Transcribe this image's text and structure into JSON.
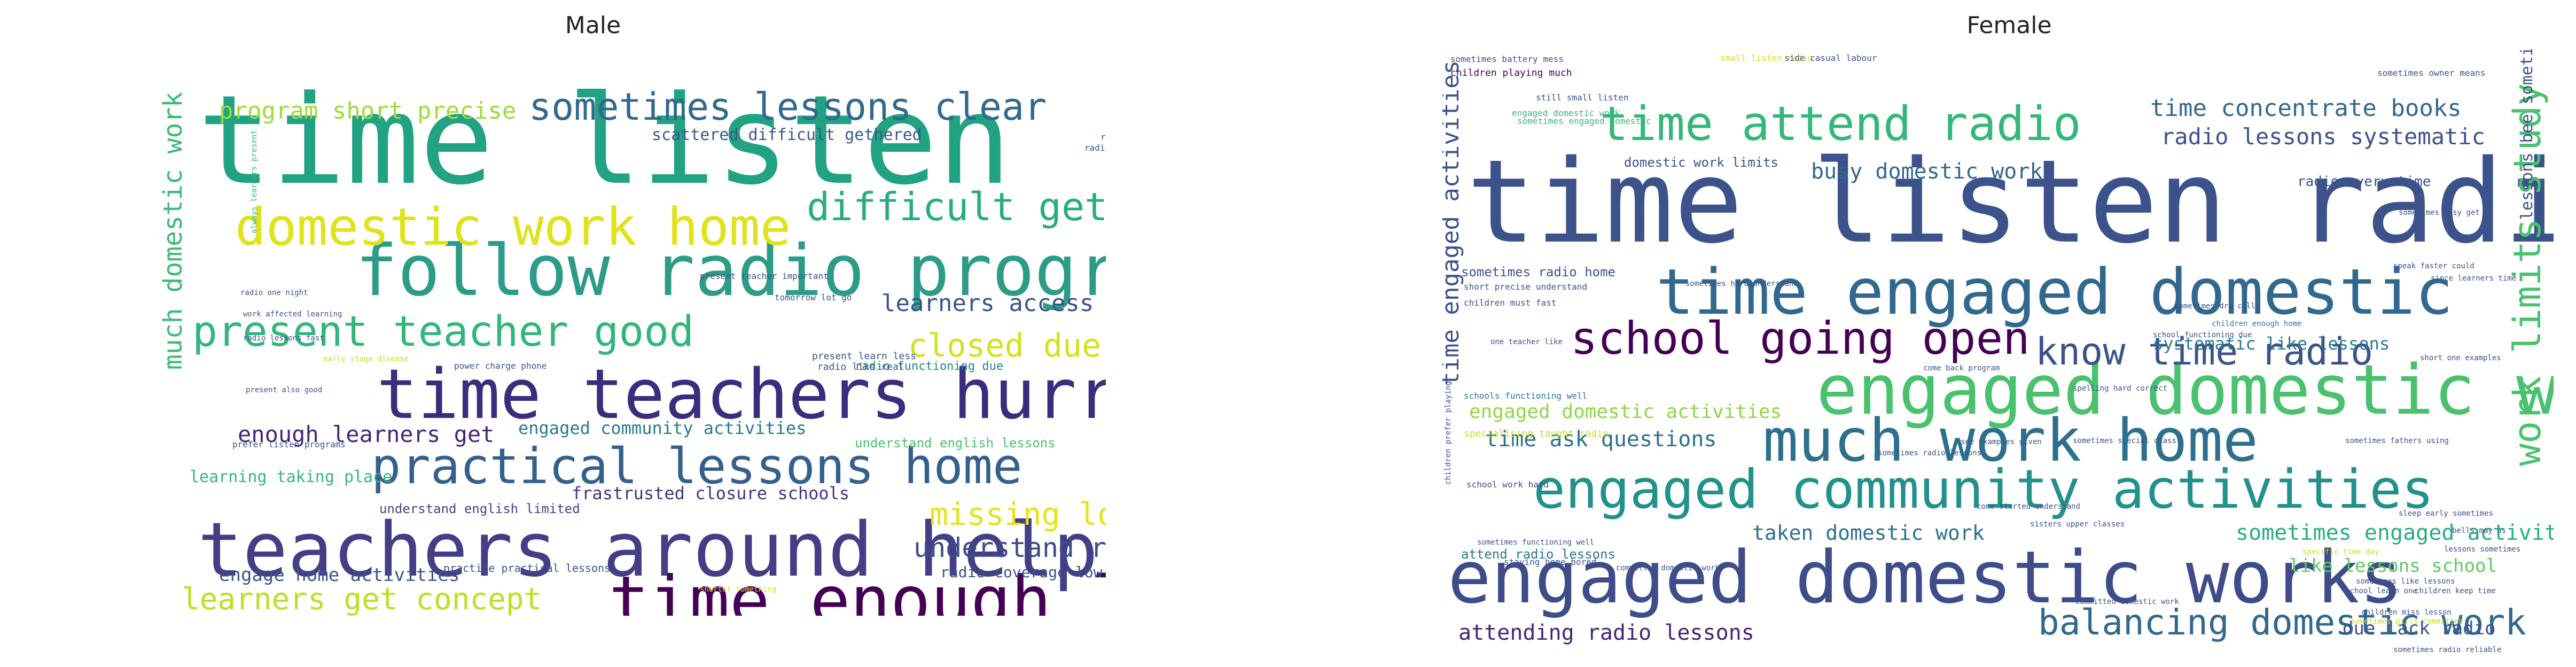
{
  "panels": [
    {
      "title": "Male",
      "words": [
        {
          "text": "time listen radio",
          "color": "#21a383"
        },
        {
          "text": "teachers around help",
          "color": "#433e85"
        },
        {
          "text": "time enough learners",
          "color": "#440154"
        },
        {
          "text": "follow radio program",
          "color": "#2c9c89"
        },
        {
          "text": "time teachers hurry",
          "color": "#3b2c7e"
        },
        {
          "text": "domestic work home",
          "color": "#e0e21a"
        },
        {
          "text": "practical lessons home",
          "color": "#35608d"
        },
        {
          "text": "present teacher good",
          "color": "#32b67a"
        },
        {
          "text": "difficult gethered one",
          "color": "#27ad81"
        },
        {
          "text": "sometimes lessons clear",
          "color": "#31688e"
        },
        {
          "text": "closed due covid",
          "color": "#d2e21b"
        },
        {
          "text": "missing lot things",
          "color": "#e5e419"
        },
        {
          "text": "learners get concept",
          "color": "#bddf26"
        },
        {
          "text": "learners follow radio",
          "color": "#34b679"
        },
        {
          "text": "understand radio lessons",
          "color": "#3e4c8a"
        },
        {
          "text": "learners access radio",
          "color": "#3b528b"
        },
        {
          "text": "program short precise",
          "color": "#9fda3a"
        },
        {
          "text": "enough learners get",
          "color": "#482475"
        },
        {
          "text": "faster radio program",
          "color": "#9dd93b"
        },
        {
          "text": "much domestic work",
          "color": "#3aba76"
        },
        {
          "text": "learners scattered difficult",
          "color": "#3b528b"
        },
        {
          "text": "coverage low parts",
          "color": "#2d708e"
        },
        {
          "text": "engage home activities",
          "color": "#3b528b"
        },
        {
          "text": "engaged community activities",
          "color": "#2a788e"
        },
        {
          "text": "frastrusted closure schools",
          "color": "#46337e"
        },
        {
          "text": "learning taking place",
          "color": "#35b779"
        },
        {
          "text": "scattered difficult gethered",
          "color": "#38598c"
        },
        {
          "text": "radio coverage low",
          "color": "#3b528b"
        },
        {
          "text": "understand english lessons",
          "color": "#4ac16d"
        },
        {
          "text": "understand english limited",
          "color": "#414487"
        },
        {
          "text": "gethered one place",
          "color": "#d8e219"
        },
        {
          "text": "radio functioning due",
          "color": "#25848e"
        },
        {
          "text": "practice practical lessons",
          "color": "#3b528b"
        },
        {
          "text": "radio lessons well",
          "color": "#3b528b"
        },
        {
          "text": "radio low understand",
          "color": "#3b528b"
        },
        {
          "text": "radio coverage learners",
          "color": "#2a788e"
        },
        {
          "text": "understand enough studies",
          "color": "#3b528b"
        },
        {
          "text": "present teacher important",
          "color": "#3b528b"
        },
        {
          "text": "radio one night",
          "color": "#3b528b"
        },
        {
          "text": "work affected learning",
          "color": "#3b528b"
        },
        {
          "text": "radio lessons fast",
          "color": "#3b528b"
        },
        {
          "text": "power charge phone",
          "color": "#3b528b"
        },
        {
          "text": "tomorrow lot go",
          "color": "#3b528b"
        },
        {
          "text": "present learn less",
          "color": "#3b528b"
        },
        {
          "text": "radio like real",
          "color": "#3b528b"
        },
        {
          "text": "prefer listen programs",
          "color": "#3b528b"
        },
        {
          "text": "present also good",
          "color": "#3b528b"
        },
        {
          "text": "early stage disease",
          "color": "#c2df23"
        },
        {
          "text": "power charging radio",
          "color": "#3b528b"
        },
        {
          "text": "shorter something",
          "color": "#d5e21a"
        },
        {
          "text": "always learners present",
          "color": "#35b779"
        },
        {
          "text": "radio lessons sufficient",
          "color": "#3b528b"
        },
        {
          "text": "radio sometimes low",
          "color": "#3b528b"
        }
      ]
    },
    {
      "title": "Female",
      "words": [
        {
          "text": "time listen radio",
          "color": "#3b528b"
        },
        {
          "text": "engaged domestic works",
          "color": "#3e4c8a"
        },
        {
          "text": "engaged domestic work",
          "color": "#4ac16d"
        },
        {
          "text": "time engaged domestic",
          "color": "#31688e"
        },
        {
          "text": "engaged community activities",
          "color": "#21918c"
        },
        {
          "text": "much work home",
          "color": "#2d708e"
        },
        {
          "text": "time attend radio",
          "color": "#35b779"
        },
        {
          "text": "school going open",
          "color": "#440154"
        },
        {
          "text": "know time radio",
          "color": "#3b528b"
        },
        {
          "text": "balancing domestic work",
          "color": "#31688e"
        },
        {
          "text": "work limits study",
          "color": "#4ac16d"
        },
        {
          "text": "time engaged activities",
          "color": "#3b528b"
        },
        {
          "text": "time concentrate books",
          "color": "#31688e"
        },
        {
          "text": "radio lessons systematic",
          "color": "#3b528b"
        },
        {
          "text": "busy domestic work",
          "color": "#31688e"
        },
        {
          "text": "sometimes engaged activities",
          "color": "#27ad81"
        },
        {
          "text": "attending radio lessons",
          "color": "#482475"
        },
        {
          "text": "time ask questions",
          "color": "#2d708e"
        },
        {
          "text": "taken domestic work",
          "color": "#2d708e"
        },
        {
          "text": "engaged domestic activities",
          "color": "#8fd744"
        },
        {
          "text": "like lessons school",
          "color": "#5ec962"
        },
        {
          "text": "due lack radio",
          "color": "#3b528b"
        },
        {
          "text": "radio every time",
          "color": "#3b528b"
        },
        {
          "text": "domestic work limits",
          "color": "#3b528b"
        },
        {
          "text": "lessons bee sometimes",
          "color": "#3b528b"
        },
        {
          "text": "sometimes radio home",
          "color": "#3b528b"
        },
        {
          "text": "systematic like lessons",
          "color": "#2a788e"
        },
        {
          "text": "attend radio lessons",
          "color": "#2a788e"
        },
        {
          "text": "children playing much",
          "color": "#440154"
        },
        {
          "text": "sometimes battery mess",
          "color": "#3b528b"
        },
        {
          "text": "small listen radio",
          "color": "#d2e21b"
        },
        {
          "text": "side casual labour",
          "color": "#3b528b"
        },
        {
          "text": "sometimes owner means",
          "color": "#3b528b"
        },
        {
          "text": "still small listen",
          "color": "#3b528b"
        },
        {
          "text": "engaged domestic work",
          "color": "#35b779"
        },
        {
          "text": "sometimes engaged domestic",
          "color": "#35b779"
        },
        {
          "text": "sometimes easy get",
          "color": "#3b528b"
        },
        {
          "text": "speak faster could",
          "color": "#3b528b"
        },
        {
          "text": "short precise understand",
          "color": "#3b528b"
        },
        {
          "text": "since learners time",
          "color": "#3b528b"
        },
        {
          "text": "sometimes hard understand",
          "color": "#3b528b"
        },
        {
          "text": "children must fast",
          "color": "#3b528b"
        },
        {
          "text": "sometimes dry cells",
          "color": "#3b528b"
        },
        {
          "text": "children enough home",
          "color": "#2a788e"
        },
        {
          "text": "school functioning due",
          "color": "#3b528b"
        },
        {
          "text": "one teacher like",
          "color": "#3b528b"
        },
        {
          "text": "short one examples",
          "color": "#3b528b"
        },
        {
          "text": "come back program",
          "color": "#3b528b"
        },
        {
          "text": "spelling hard correct",
          "color": "#3b528b"
        },
        {
          "text": "schools functioning well",
          "color": "#2a788e"
        },
        {
          "text": "specialising taught radio",
          "color": "#c2df23"
        },
        {
          "text": "sometimes special class",
          "color": "#3b528b"
        },
        {
          "text": "sometimes fathers using",
          "color": "#3b528b"
        },
        {
          "text": "sometimes radio lessons",
          "color": "#3b528b"
        },
        {
          "text": "see examples given",
          "color": "#3b528b"
        },
        {
          "text": "school work hard",
          "color": "#3b528b"
        },
        {
          "text": "come started understand",
          "color": "#3b528b"
        },
        {
          "text": "sisters upper classes",
          "color": "#3b528b"
        },
        {
          "text": "sometimes functioning well",
          "color": "#3b528b"
        },
        {
          "text": "staying home bored",
          "color": "#3b528b"
        },
        {
          "text": "committed domestic works",
          "color": "#3b528b"
        },
        {
          "text": "specific time day",
          "color": "#c2df23"
        },
        {
          "text": "sleep early sometimes",
          "color": "#3b528b"
        },
        {
          "text": "bells may us",
          "color": "#3b528b"
        },
        {
          "text": "lessons sometimes",
          "color": "#3b528b"
        },
        {
          "text": "sometimes like lessons",
          "color": "#3b528b"
        },
        {
          "text": "school learn one",
          "color": "#3b528b"
        },
        {
          "text": "children keep time",
          "color": "#3b528b"
        },
        {
          "text": "committed domestic work",
          "color": "#3b528b"
        },
        {
          "text": "children miss lesson",
          "color": "#3b528b"
        },
        {
          "text": "sometimes girls committed",
          "color": "#c2df23"
        },
        {
          "text": "sometimes radio reliable",
          "color": "#3b528b"
        },
        {
          "text": "children learn air",
          "color": "#3b528b"
        },
        {
          "text": "short hand could",
          "color": "#d8e219"
        },
        {
          "text": "class since learners",
          "color": "#3b528b"
        },
        {
          "text": "children prefer playing",
          "color": "#3b528b"
        }
      ]
    }
  ]
}
